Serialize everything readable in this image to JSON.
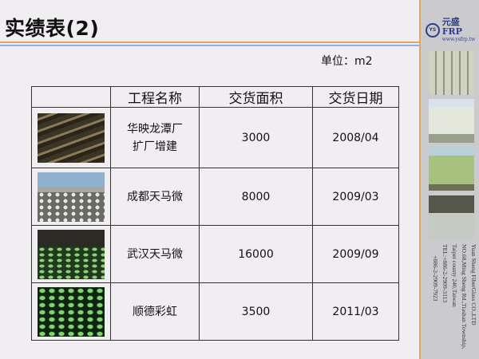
{
  "title": "实绩表(2)",
  "unit": "单位：m2",
  "table": {
    "headers": [
      "",
      "工程名称",
      "交货面积",
      "交货日期"
    ],
    "rows": [
      {
        "name_line1": "华映龙潭厂",
        "name_line2": "扩厂增建",
        "area": "3000",
        "date": "2008/04"
      },
      {
        "name_line1": "成都天马微",
        "name_line2": "",
        "area": "8000",
        "date": "2009/03"
      },
      {
        "name_line1": "武汉天马微",
        "name_line2": "",
        "area": "16000",
        "date": "2009/09"
      },
      {
        "name_line1": "顺德彩虹",
        "name_line2": "",
        "area": "3500",
        "date": "2011/03"
      }
    ]
  },
  "sidebar": {
    "logo_mark": "YS",
    "logo_name": "元盛FRP",
    "logo_url": "www.ysfrp.tw",
    "address": [
      "Yuan Sheng FiberGlass CO.,LTD",
      "NO.68,Ming Sheng Rd.,Tiashan Township,",
      "Taipei county 240,Taiwan",
      "TEL:+886-2-2909-3113",
      "+886-2-2909-7923"
    ]
  },
  "colors": {
    "accent_orange": "#e1a565",
    "accent_blue": "#8fb0e0",
    "brand": "#2c3f8a"
  }
}
